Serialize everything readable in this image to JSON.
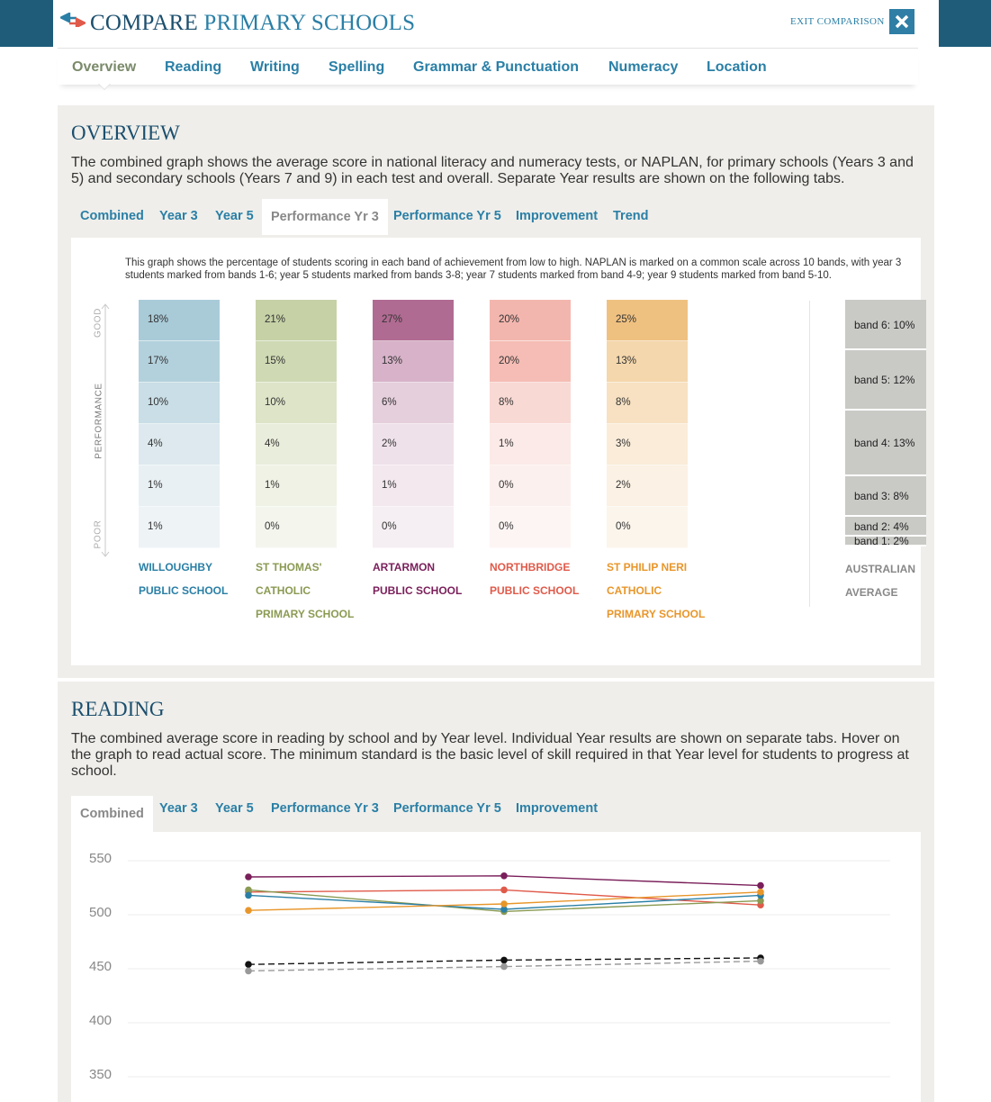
{
  "header": {
    "icon": "swap-arrows-icon",
    "title_a": "COMPARE",
    "title_b": " PRIMARY SCHOOLS",
    "exit_label": "EXIT COMPARISON",
    "exit_icon": "close-icon"
  },
  "nav": {
    "items": [
      "Overview",
      "Reading",
      "Writing",
      "Spelling",
      "Grammar & Punctuation",
      "Numeracy",
      "Location"
    ],
    "active": "Overview"
  },
  "overview": {
    "title": "OVERVIEW",
    "description": "The combined graph shows the average score in national literacy and numeracy tests, or NAPLAN, for primary schools (Years 3 and 5) and secondary schools (Years 7 and 9) in each test and overall. Separate Year results are shown on the following tabs.",
    "tabs": [
      "Combined",
      "Year 3",
      "Year 5",
      "Performance Yr 3",
      "Performance Yr 5",
      "Improvement",
      "Trend"
    ],
    "active_tab": "Performance Yr 3",
    "note": "This graph shows the percentage of students scoring in each band of achievement from low to high. NAPLAN is marked on a common scale across 10 bands, with year 3 students marked from bands 1-6; year 5 students marked from bands 3-8; year 7 students marked from band 4-9; year 9 students marked from band 5-10.",
    "axis": {
      "good": "GOOD",
      "performance": "PERFORMANCE",
      "poor": "POOR"
    },
    "schools": [
      {
        "name": [
          "WILLOUGHBY",
          "PUBLIC SCHOOL"
        ],
        "color": "#2a7fa6",
        "values": [
          "18%",
          "17%",
          "10%",
          "4%",
          "1%",
          "1%"
        ],
        "shades": [
          "#a9cbd8",
          "#b3d1dd",
          "#c9dee6",
          "#dde9ee",
          "#e9f0f4",
          "#eef3f6"
        ]
      },
      {
        "name": [
          "ST THOMAS'",
          "CATHOLIC",
          "PRIMARY SCHOOL"
        ],
        "color": "#8a9a52",
        "values": [
          "21%",
          "15%",
          "10%",
          "4%",
          "1%",
          "0%"
        ],
        "shades": [
          "#c6d1a6",
          "#cfd9b4",
          "#dde4c8",
          "#e9eddb",
          "#eff2e5",
          "#f4f6ee"
        ]
      },
      {
        "name": [
          "ARTARMON",
          "PUBLIC SCHOOL"
        ],
        "color": "#7a1f5a",
        "values": [
          "27%",
          "13%",
          "6%",
          "2%",
          "1%",
          "0%"
        ],
        "shades": [
          "#b06b92",
          "#d7b2c8",
          "#e6cfdc",
          "#efe1ea",
          "#f2e8ee",
          "#f5eef2"
        ]
      },
      {
        "name": [
          "NORTHBRIDGE",
          "PUBLIC SCHOOL"
        ],
        "color": "#e05a4a",
        "values": [
          "20%",
          "20%",
          "8%",
          "1%",
          "0%",
          "0%"
        ],
        "shades": [
          "#f3b6ae",
          "#f5bdb5",
          "#f9d9d4",
          "#fbeae7",
          "#fcf0ee",
          "#fdf5f4"
        ]
      },
      {
        "name": [
          "ST PHILIP NERI",
          "CATHOLIC",
          "PRIMARY SCHOOL"
        ],
        "color": "#e8962a",
        "values": [
          "25%",
          "13%",
          "8%",
          "3%",
          "2%",
          "0%"
        ],
        "shades": [
          "#efc181",
          "#f4d7ac",
          "#f7e1c2",
          "#faecd9",
          "#fbf1e4",
          "#fcf5ec"
        ]
      }
    ],
    "average": {
      "name": [
        "AUSTRALIAN",
        "AVERAGE"
      ],
      "bands": [
        "band 6: 10%",
        "band 5: 12%",
        "band 4: 13%",
        "band 3: 8%",
        "band 2: 4%",
        "band 1: 2%"
      ],
      "band_values": [
        10,
        12,
        13,
        8,
        4,
        2
      ]
    }
  },
  "reading": {
    "title": "READING",
    "description": "The combined average score in reading by school and by Year level. Individual Year results are shown on separate tabs. Hover on the graph to read actual score. The minimum standard is the basic level of skill required in that Year level for students to progress at school.",
    "tabs": [
      "Combined",
      "Year 3",
      "Year 5",
      "Performance Yr 3",
      "Performance Yr 5",
      "Improvement"
    ],
    "active_tab": "Combined"
  },
  "chart_data": {
    "type": "line",
    "ylim": [
      350,
      550
    ],
    "yticks": [
      "550",
      "500",
      "450",
      "400",
      "350"
    ],
    "x": [
      1,
      2,
      3
    ],
    "series": [
      {
        "color": "#7a1f5a",
        "values": [
          535,
          536,
          527
        ],
        "dashed": false
      },
      {
        "color": "#e05a4a",
        "values": [
          521,
          523,
          509
        ],
        "dashed": false
      },
      {
        "color": "#8a9a52",
        "values": [
          523,
          503,
          513
        ],
        "dashed": false
      },
      {
        "color": "#2a7fa6",
        "values": [
          518,
          505,
          518
        ],
        "dashed": false
      },
      {
        "color": "#e8962a",
        "values": [
          504,
          510,
          521
        ],
        "dashed": false
      },
      {
        "color": "#111111",
        "values": [
          454,
          458,
          460
        ],
        "dashed": true
      },
      {
        "color": "#999999",
        "values": [
          448,
          452,
          457
        ],
        "dashed": true
      }
    ]
  }
}
